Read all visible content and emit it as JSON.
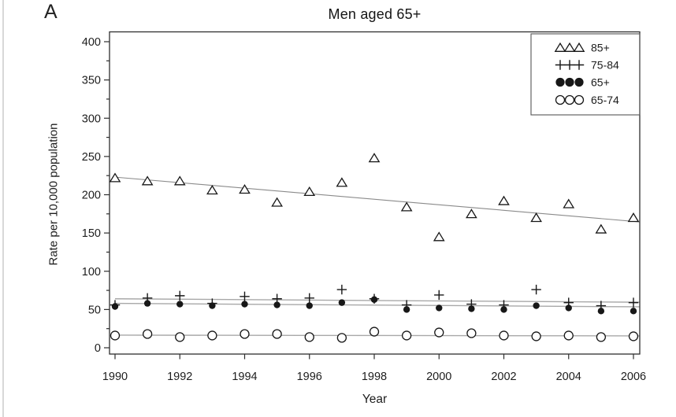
{
  "panel_label": "A",
  "title": "Men aged 65+",
  "chart_data": {
    "type": "scatter",
    "title": "Men aged 65+",
    "xlabel": "Year",
    "ylabel": "Rate per 10,000 population",
    "x": [
      1990,
      1991,
      1992,
      1993,
      1994,
      1995,
      1996,
      1997,
      1998,
      1999,
      2000,
      2001,
      2002,
      2003,
      2004,
      2005,
      2006
    ],
    "x_tick_labels": [
      "1990",
      "1992",
      "1994",
      "1996",
      "1998",
      "2000",
      "2002",
      "2004",
      "2006"
    ],
    "x_ticks": [
      1990,
      1992,
      1994,
      1996,
      1998,
      2000,
      2002,
      2004,
      2006
    ],
    "y_ticks": [
      0,
      50,
      100,
      150,
      200,
      250,
      300,
      350,
      400
    ],
    "y_minor_tick_step": 25,
    "ylim": [
      -8,
      413
    ],
    "xlim": [
      1989.8,
      2006.2
    ],
    "grid": false,
    "legend_position": "top-right-inside",
    "series": [
      {
        "name": "85+",
        "marker": "open-triangle",
        "values": [
          222,
          218,
          218,
          206,
          207,
          190,
          204,
          216,
          248,
          184,
          145,
          175,
          192,
          170,
          188,
          155,
          170
        ],
        "trend_line": {
          "from": 223,
          "to": 164.5
        }
      },
      {
        "name": "75-84",
        "marker": "plus",
        "values": [
          56,
          65,
          68,
          58,
          67,
          64,
          65,
          76,
          64,
          56,
          69,
          57,
          56,
          76,
          59,
          55,
          59
        ],
        "trend_line": {
          "from": 64,
          "to": 59.5
        }
      },
      {
        "name": "65+",
        "marker": "filled-circle",
        "values": [
          54,
          58,
          57,
          55,
          57,
          56,
          55,
          59,
          63,
          50,
          52,
          51,
          50,
          55,
          52,
          48,
          48
        ],
        "trend_line": {
          "from": 58,
          "to": 53.5
        }
      },
      {
        "name": "65-74",
        "marker": "open-circle",
        "values": [
          16,
          18,
          14,
          16,
          18,
          18,
          14,
          13,
          21,
          16,
          20,
          19,
          16,
          15,
          16,
          14,
          15
        ],
        "trend_line": {
          "from": 16.5,
          "to": 15.5
        }
      }
    ]
  },
  "colors": {
    "marker": "#171717",
    "text": "#1d1d1d",
    "axis": "#2e2e2e",
    "trend_85plus": "#8a8a8a",
    "trend_lower": "#a8a8a8",
    "background": "#ffffff",
    "page_edge": "#d8d8d8"
  }
}
